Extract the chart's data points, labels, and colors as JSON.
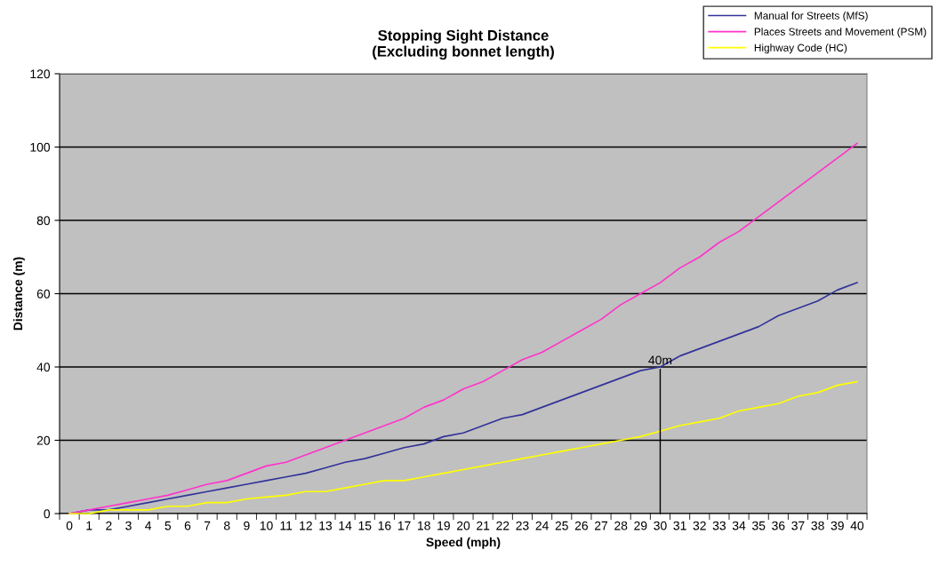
{
  "chart_data": {
    "type": "line",
    "title": "Stopping Sight Distance\n(Excluding bonnet length)",
    "xlabel": "Speed (mph)",
    "ylabel": "Distance (m)",
    "categories": [
      "0",
      "1",
      "2",
      "3",
      "4",
      "5",
      "6",
      "7",
      "8",
      "9",
      "10",
      "11",
      "12",
      "13",
      "14",
      "15",
      "16",
      "17",
      "18",
      "19",
      "20",
      "21",
      "22",
      "23",
      "24",
      "25",
      "26",
      "27",
      "28",
      "29",
      "30",
      "31",
      "32",
      "33",
      "34",
      "35",
      "36",
      "37",
      "38",
      "39",
      "40"
    ],
    "series": [
      {
        "name": "Manual for Streets (MfS)",
        "color": "#333399",
        "values": [
          0,
          1,
          1,
          2,
          3,
          4,
          5,
          6,
          7,
          8,
          9,
          10,
          11,
          12.5,
          14,
          15,
          16.5,
          18,
          19,
          21,
          22,
          24,
          26,
          27,
          29,
          31,
          33,
          35,
          37,
          39,
          40,
          43,
          45,
          47,
          49,
          51,
          54,
          56,
          58,
          61,
          63
        ]
      },
      {
        "name": "Places Streets and Movement (PSM)",
        "color": "#ff33cc",
        "values": [
          0,
          1,
          2,
          3,
          4,
          5,
          6.5,
          8,
          9,
          11,
          13,
          14,
          16,
          18,
          20,
          22,
          24,
          26,
          29,
          31,
          34,
          36,
          39,
          42,
          44,
          47,
          50,
          53,
          57,
          60,
          63,
          67,
          70,
          74,
          77,
          81,
          85,
          89,
          93,
          97,
          101
        ]
      },
      {
        "name": "Highway Code (HC)",
        "color": "#ffff00",
        "values": [
          0,
          0,
          1,
          1,
          1,
          2,
          2,
          3,
          3,
          4,
          4.5,
          5,
          6,
          6,
          7,
          8,
          9,
          9,
          10,
          11,
          12,
          13,
          14,
          15,
          16,
          17,
          18,
          19,
          20,
          21,
          22.5,
          24,
          25,
          26,
          28,
          29,
          30,
          32,
          33,
          35,
          36
        ]
      }
    ],
    "ylim": [
      0,
      120
    ],
    "yticks": [
      0,
      20,
      40,
      60,
      80,
      100,
      120
    ],
    "grid": "y",
    "legend": "top right",
    "marker": "none",
    "line_style": "solid",
    "annotations": [
      {
        "text": "40m",
        "x": "30",
        "y": 40
      }
    ]
  }
}
